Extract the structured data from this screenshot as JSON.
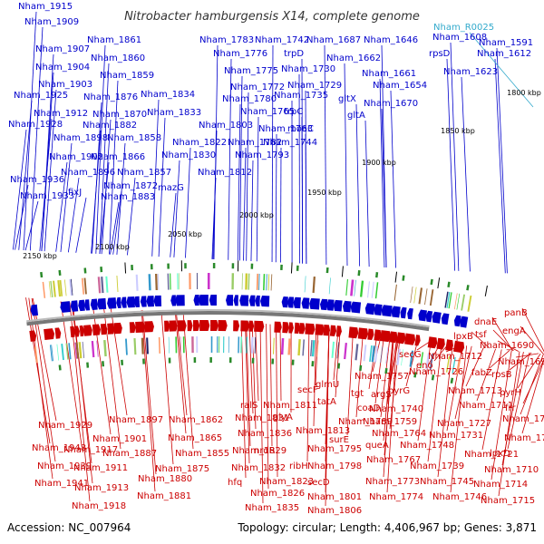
{
  "title": "Nitrobacter hamburgensis X14, complete genome",
  "footer": {
    "accession": "Accession: NC_007964",
    "stats": "Topology: circular; Length: 4,406,967 bp; Genes: 3,871"
  },
  "colors": {
    "forward": "#0000cc",
    "reverse": "#cc0000",
    "rna": "#33aacc",
    "backbone": "#777777",
    "tick": "#2a8a2a"
  },
  "kbp_ticks": [
    "1800 kbp",
    "1850 kbp",
    "1900 kbp",
    "1950 kbp",
    "2000 kbp",
    "2050 kbp",
    "2100 kbp",
    "2150 kbp"
  ],
  "forward_labels": [
    "Nham_1915",
    "Nham_1909",
    "Nham_1907",
    "Nham_1904",
    "Nham_1903",
    "Nham_1925",
    "Nham_1912",
    "Nham_1928",
    "Nham_1898",
    "Nham_1902",
    "Nham_1896",
    "Nham_1936",
    "Nham_1933",
    "fixJ",
    "Nham_1861",
    "Nham_1860",
    "Nham_1859",
    "Nham_1876",
    "Nham_1870",
    "Nham_1882",
    "Nham_1858",
    "Nham_1866",
    "Nham_1857",
    "Nham_1872",
    "Nham_1883",
    "mazG",
    "Nham_1834",
    "Nham_1833",
    "Nham_1822",
    "Nham_1830",
    "Nham_1812",
    "Nham_1803",
    "Nham_1782",
    "Nham_1793",
    "Nham_1783",
    "Nham_1776",
    "Nham_1775",
    "Nham_1772",
    "Nham_1780",
    "Nham_1765",
    "Nham_1763",
    "Nham_1744",
    "Nham_1742",
    "trpD",
    "Nham_1730",
    "Nham_1729",
    "Nham_1735",
    "trpC",
    "moaC",
    "Nham_1687",
    "Nham_1662",
    "gltX",
    "gltA",
    "Nham_1646",
    "Nham_1661",
    "Nham_1654",
    "Nham_1670",
    "Nham_1608",
    "rpsD",
    "Nham_1612",
    "Nham_1623",
    "Nham_1591"
  ],
  "rna_labels": [
    "Nham_R0025"
  ],
  "reverse_labels": [
    "panB",
    "dnaE",
    "engA",
    "lpxB",
    "tsf",
    "Nham_1690",
    "Nham_1692",
    "fabZ",
    "rpsB",
    "pyrH",
    "frr",
    "Nham_1700",
    "Nham_1702",
    "lpxD",
    "Nham_1710",
    "Nham_1714",
    "Nham_1715",
    "secG",
    "eno",
    "Nham_1712",
    "Nham_1726",
    "Nham_1713",
    "Nham_1711",
    "Nham_1727",
    "Nham_1731",
    "Nham_1721",
    "Nham_1757",
    "argS",
    "pyrG",
    "Nham_1740",
    "Nham_1759",
    "Nham_1764",
    "Nham_1748",
    "Nham_1739",
    "Nham_1745",
    "Nham_1746",
    "tgt",
    "coaD",
    "queA",
    "Nham_1767",
    "Nham_1773",
    "Nham_1774",
    "glmU",
    "secF",
    "tatA",
    "Nham_1789",
    "surE",
    "Nham_1795",
    "Nham_1798",
    "secD",
    "Nham_1801",
    "Nham_1806",
    "ralS",
    "Nham_1831",
    "Nham_1811",
    "glyA",
    "Nham_1813",
    "Nham_1836",
    "Nham_1829",
    "nrdR",
    "ribH",
    "Nham_1832",
    "Nham_1823",
    "hfq",
    "Nham_1826",
    "Nham_1835",
    "Nham_1862",
    "Nham_1865",
    "Nham_1855",
    "Nham_1875",
    "Nham_1880",
    "Nham_1881",
    "Nham_1897",
    "Nham_1901",
    "Nham_1887",
    "Nham_1917",
    "Nham_1911",
    "Nham_1913",
    "Nham_1918",
    "Nham_1929",
    "Nham_1948",
    "Nham_1939",
    "Nham_1941"
  ]
}
